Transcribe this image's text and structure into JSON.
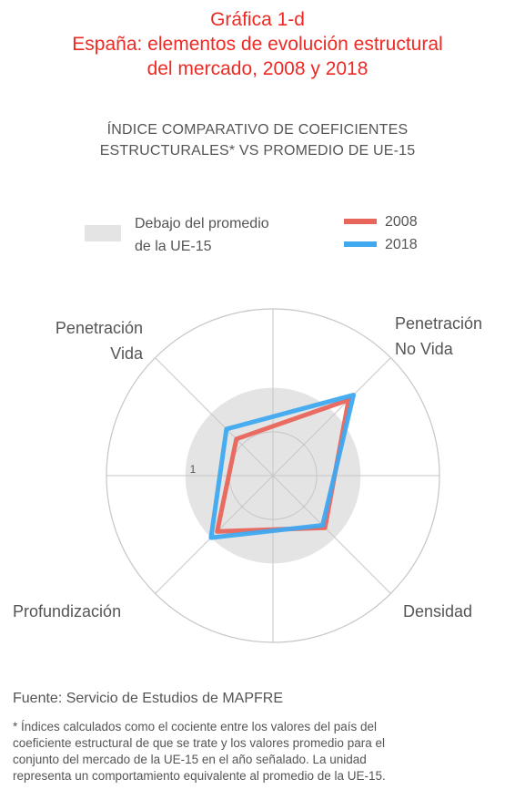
{
  "header": {
    "title_line1": "Gráfica 1-d",
    "title_line2": "España: elementos de evolución estructural",
    "title_line3": "del mercado, 2008 y 2018",
    "subtitle_line1": "ÍNDICE COMPARATIVO DE COEFICIENTES",
    "subtitle_line2": "ESTRUCTURALES* VS PROMEDIO DE UE-15"
  },
  "legend": {
    "area_label_line1": "Debajo del promedio",
    "area_label_line2": "de la UE-15",
    "series_2008": "2008",
    "series_2018": "2018"
  },
  "colors": {
    "title": "#ee2a24",
    "series_2008": "#e8655b",
    "series_2018": "#3fa9f0",
    "below_avg_area": "#e4e4e4",
    "grid": "#c6c6c6",
    "text": "#555555"
  },
  "chart_data": {
    "type": "radar",
    "axes": [
      {
        "name_line1": "Penetración",
        "name_line2": "No Vida"
      },
      {
        "name_line1": "Densidad",
        "name_line2": ""
      },
      {
        "name_line1": "Profundización",
        "name_line2": ""
      },
      {
        "name_line1": "Penetración",
        "name_line2": "Vida"
      }
    ],
    "reference_value": 1,
    "reference_label": "1",
    "rmax": 1.9,
    "grid_rings": [
      0.5,
      1.9
    ],
    "series": [
      {
        "name": "2008",
        "values": [
          1.22,
          0.84,
          0.9,
          0.59
        ]
      },
      {
        "name": "2018",
        "values": [
          1.3,
          0.8,
          1.0,
          0.75
        ]
      }
    ]
  },
  "footer": {
    "source": "Fuente: Servicio de Estudios de MAPFRE",
    "note_line1": "* Índices calculados como el cociente entre los valores del país del",
    "note_line2": "coeficiente estructural de que se trate y los valores promedio para el",
    "note_line3": "conjunto del mercado de la UE-15 en el año señalado. La unidad",
    "note_line4": "representa un comportamiento equivalente al promedio de la UE-15."
  }
}
